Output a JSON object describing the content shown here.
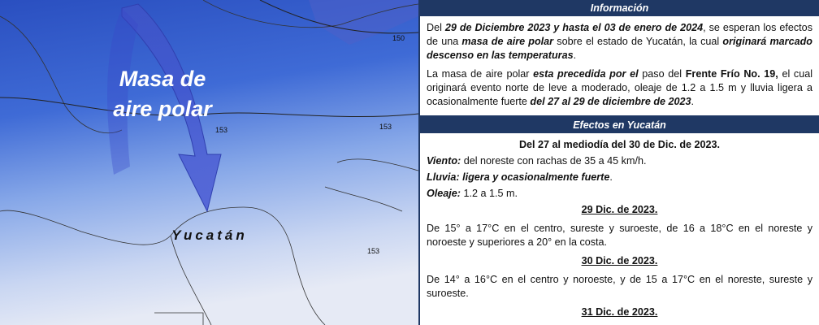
{
  "map": {
    "air_mass_label": [
      "Masa de",
      "aire polar"
    ],
    "place_label": "Yucatán",
    "isobar_labels": [
      150,
      153,
      153,
      153
    ]
  },
  "info": {
    "heading": "Información",
    "paragraphs": [
      [
        "Del ",
        "29 de Diciembre 2023 y hasta el 03 de enero de 2024",
        ", se esperan los efectos de una ",
        "masa de aire polar",
        " sobre el estado de Yucatán, la cual ",
        "originará marcado descenso en las temperaturas",
        "."
      ],
      [
        "La masa de aire polar ",
        "esta precedida por el",
        " paso del ",
        "Frente Frío No. 19,",
        " el cual originará evento norte de leve a moderado, oleaje de 1.2 a 1.5 m y lluvia ligera a ocasionalmente fuerte ",
        "del 27 al 29 de diciembre de 2023",
        "."
      ]
    ]
  },
  "effects": {
    "heading": "Efectos en Yucatán",
    "period": "Del 27 al  mediodía del 30 de Dic. de 2023.",
    "items": [
      [
        "Viento:",
        " del noreste con rachas de 35 a 45 km/h."
      ],
      [
        "Lluvia:",
        " ligera y ocasionalmente fuerte",
        "."
      ],
      [
        "Oleaje:",
        " 1.2 a 1.5 m."
      ]
    ],
    "days": [
      {
        "date": "29 Dic. de 2023.",
        "text": "De 15° a 17°C en el centro, sureste y suroeste, de 16 a 18°C en el noreste y noroeste y superiores a 20° en la costa."
      },
      {
        "date": "30 Dic. de 2023.",
        "text": "De 14° a 16°C en el centro y noroeste, y de 15 a 17°C en el noreste, sureste y suroeste."
      },
      {
        "date": "31 Dic. de 2023."
      }
    ]
  }
}
